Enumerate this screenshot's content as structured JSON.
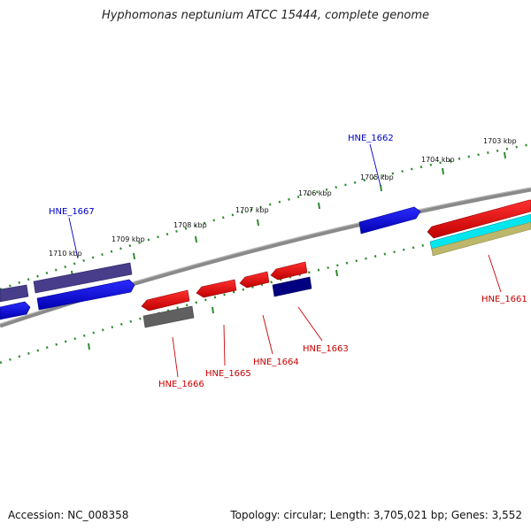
{
  "title": "Hyphomonas neptunium ATCC 15444, complete genome",
  "footer": {
    "accession": "Accession: NC_008358",
    "summary": "Topology: circular; Length: 3,705,021 bp; Genes: 3,552"
  },
  "ticks": [
    {
      "label": "1703 kbp"
    },
    {
      "label": "1704 kbp"
    },
    {
      "label": "1705 kbp"
    },
    {
      "label": "1706 kbp"
    },
    {
      "label": "1707 kbp"
    },
    {
      "label": "1708 kbp"
    },
    {
      "label": "1709 kbp"
    },
    {
      "label": "1710 kbp"
    }
  ],
  "genes": [
    {
      "label": "HNE_1662",
      "color": "#0000cc"
    },
    {
      "label": "HNE_1667",
      "color": "#0000cc"
    },
    {
      "label": "HNE_1661",
      "color": "#cc0000"
    },
    {
      "label": "HNE_1663",
      "color": "#cc0000"
    },
    {
      "label": "HNE_1664",
      "color": "#cc0000"
    },
    {
      "label": "HNE_1665",
      "color": "#cc0000"
    },
    {
      "label": "HNE_1666",
      "color": "#cc0000"
    }
  ],
  "colors": {
    "backbone": "#808080",
    "tick": "#2e8b2e",
    "forward_cds": "#0000ff",
    "reverse_cds": "#ff0000",
    "purple_feature": "#483d8b",
    "navy_feature": "#000080",
    "gray_feature": "#606060",
    "cyan_feature": "#00e5ee",
    "khaki_feature": "#bdb76b"
  }
}
